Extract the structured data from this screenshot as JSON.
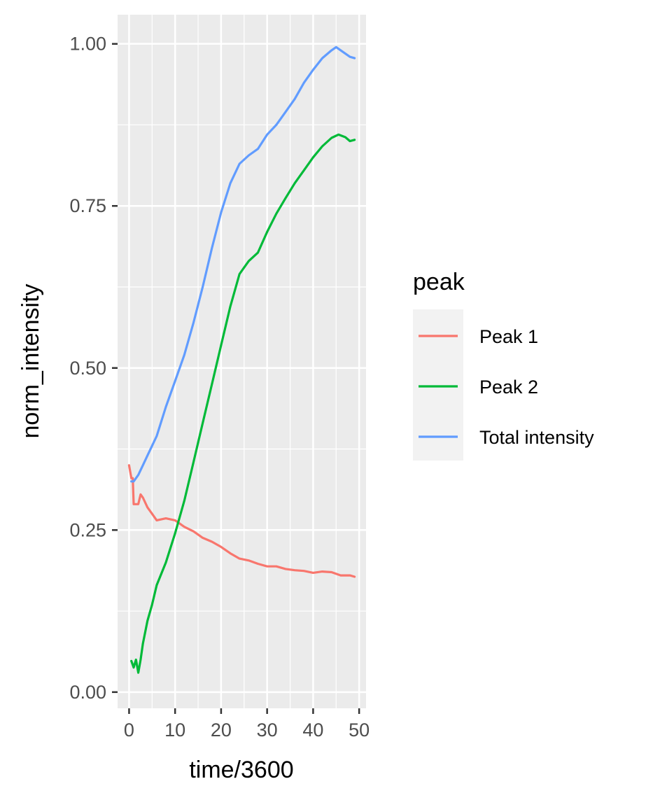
{
  "chart_data": {
    "type": "line",
    "title": "",
    "xlabel": "time/3600",
    "ylabel": "norm_intensity",
    "xlim": [
      -2.5,
      51.5
    ],
    "ylim": [
      -0.025,
      1.045
    ],
    "xticks": [
      0,
      10,
      20,
      30,
      40,
      50
    ],
    "xtick_labels": [
      "0",
      "10",
      "20",
      "30",
      "40",
      "50"
    ],
    "yticks": [
      0.0,
      0.25,
      0.5,
      0.75,
      1.0
    ],
    "ytick_labels": [
      "0.00",
      "0.25",
      "0.50",
      "0.75",
      "1.00"
    ],
    "grid": true,
    "legend": {
      "title": "peak",
      "position": "right",
      "entries": [
        "Peak 1",
        "Peak 2",
        "Total intensity"
      ]
    },
    "series": [
      {
        "name": "Peak 1",
        "color": "#F8766D",
        "x": [
          0,
          0.5,
          0.8,
          1.0,
          1.5,
          2.0,
          2.5,
          3.0,
          4.0,
          5.0,
          6.0,
          8.0,
          10.0,
          12.0,
          14.0,
          16.0,
          18.0,
          20.0,
          22.0,
          24.0,
          26.0,
          28.0,
          30.0,
          32.0,
          34.0,
          36.0,
          38.0,
          40.0,
          42.0,
          44.0,
          46.0,
          48.0,
          49.0
        ],
        "y": [
          0.35,
          0.33,
          0.33,
          0.29,
          0.29,
          0.29,
          0.305,
          0.3,
          0.285,
          0.275,
          0.265,
          0.268,
          0.265,
          0.255,
          0.248,
          0.238,
          0.232,
          0.224,
          0.214,
          0.206,
          0.203,
          0.198,
          0.194,
          0.194,
          0.19,
          0.188,
          0.187,
          0.184,
          0.186,
          0.185,
          0.18,
          0.18,
          0.178
        ]
      },
      {
        "name": "Peak 2",
        "color": "#00BA38",
        "x": [
          0.5,
          1.0,
          1.5,
          2.0,
          2.5,
          3.0,
          4.0,
          5.0,
          6.0,
          8.0,
          10.0,
          12.0,
          14.0,
          16.0,
          18.0,
          20.0,
          22.0,
          24.0,
          26.0,
          28.0,
          30.0,
          32.0,
          34.0,
          36.0,
          38.0,
          40.0,
          42.0,
          44.0,
          45.5,
          47.0,
          48.0,
          49.0
        ],
        "y": [
          0.048,
          0.038,
          0.05,
          0.03,
          0.05,
          0.075,
          0.11,
          0.135,
          0.165,
          0.2,
          0.245,
          0.295,
          0.355,
          0.415,
          0.475,
          0.535,
          0.595,
          0.645,
          0.665,
          0.678,
          0.71,
          0.738,
          0.762,
          0.785,
          0.805,
          0.825,
          0.842,
          0.855,
          0.86,
          0.856,
          0.85,
          0.852
        ]
      },
      {
        "name": "Total intensity",
        "color": "#619CFF",
        "x": [
          0.5,
          1.0,
          2.0,
          3.0,
          4.0,
          5.0,
          6.0,
          8.0,
          10.0,
          12.0,
          14.0,
          16.0,
          18.0,
          20.0,
          22.0,
          24.0,
          26.0,
          28.0,
          30.0,
          32.0,
          34.0,
          36.0,
          38.0,
          40.0,
          42.0,
          44.0,
          45.0,
          46.0,
          47.0,
          48.0,
          49.0
        ],
        "y": [
          0.325,
          0.325,
          0.335,
          0.35,
          0.365,
          0.38,
          0.395,
          0.44,
          0.48,
          0.52,
          0.57,
          0.625,
          0.685,
          0.74,
          0.785,
          0.815,
          0.828,
          0.838,
          0.86,
          0.875,
          0.895,
          0.915,
          0.94,
          0.96,
          0.978,
          0.99,
          0.995,
          0.99,
          0.985,
          0.98,
          0.978
        ]
      }
    ]
  }
}
